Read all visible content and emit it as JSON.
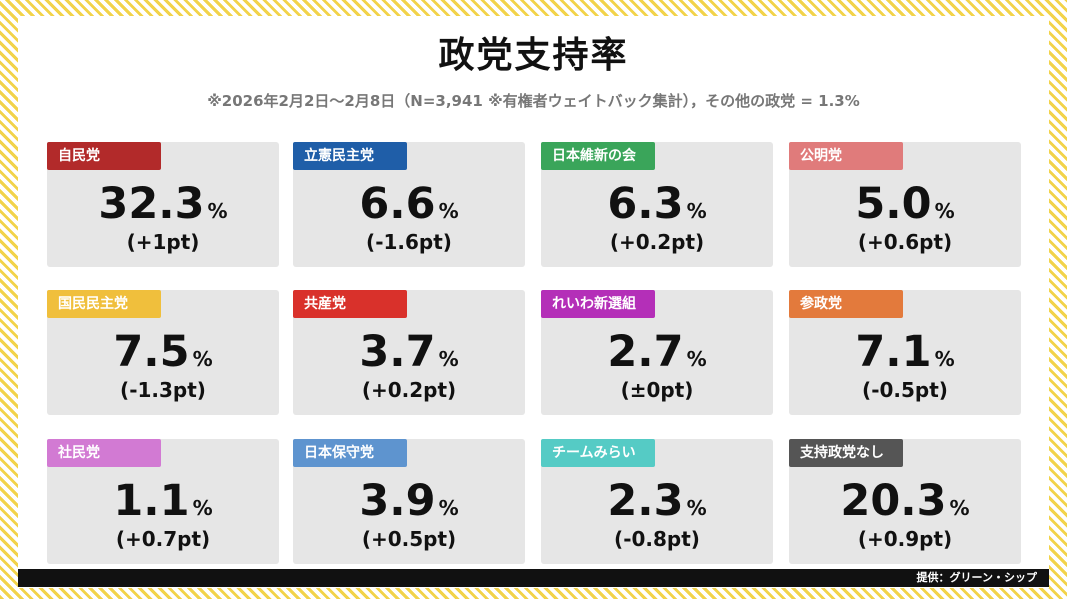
{
  "title": "政党支持率",
  "subtitle": "※2026年2月2日〜2月8日（N=3,941 ※有権者ウェイトバック集計），その他の政党 = 1.3%",
  "unit": "%",
  "credit": "提供：グリーン・シップ",
  "chart_data": {
    "type": "table",
    "title": "政党支持率",
    "subtitle": "※2026年2月2日〜2月8日（N=3,941 ※有権者ウェイトバック集計），その他の政党 = 1.3%",
    "items": [
      {
        "party": "自民党",
        "value": "32.3",
        "change": "(+1pt)",
        "color": "#b22a2a"
      },
      {
        "party": "立憲民主党",
        "value": "6.6",
        "change": "(-1.6pt)",
        "color": "#1f5ea8"
      },
      {
        "party": "日本維新の会",
        "value": "6.3",
        "change": "(+0.2pt)",
        "color": "#3aa55a"
      },
      {
        "party": "公明党",
        "value": "5.0",
        "change": "(+0.6pt)",
        "color": "#e07b7b"
      },
      {
        "party": "国民民主党",
        "value": "7.5",
        "change": "(-1.3pt)",
        "color": "#f0bf3c"
      },
      {
        "party": "共産党",
        "value": "3.7",
        "change": "(+0.2pt)",
        "color": "#d9312b"
      },
      {
        "party": "れいわ新選組",
        "value": "2.7",
        "change": "(±0pt)",
        "color": "#b42fb8"
      },
      {
        "party": "参政党",
        "value": "7.1",
        "change": "(-0.5pt)",
        "color": "#e37a3c"
      },
      {
        "party": "社民党",
        "value": "1.1",
        "change": "(+0.7pt)",
        "color": "#d27ad3"
      },
      {
        "party": "日本保守党",
        "value": "3.9",
        "change": "(+0.5pt)",
        "color": "#5e94cf"
      },
      {
        "party": "チームみらい",
        "value": "2.3",
        "change": "(-0.8pt)",
        "color": "#55cbc5"
      },
      {
        "party": "支持政党なし",
        "value": "20.3",
        "change": "(+0.9pt)",
        "color": "#555555"
      }
    ]
  }
}
